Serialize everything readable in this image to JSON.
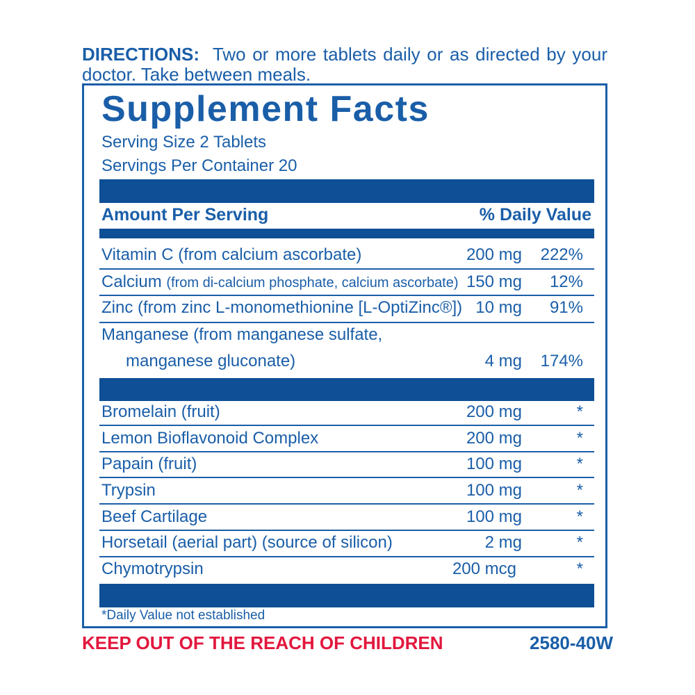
{
  "directions": {
    "label": "DIRECTIONS:",
    "text": "Two or more tablets daily or as directed by your doctor. Take between meals."
  },
  "panel": {
    "title": "Supplement Facts",
    "serving_size": "Serving Size 2 Tablets",
    "servings_per_container": "Servings Per Container 20",
    "amount_header": "Amount Per Serving",
    "dv_header": "% Daily Value",
    "nutrients": [
      {
        "name": "Vitamin C (from calcium ascorbate)",
        "amount": "200 mg",
        "dv": "222%"
      },
      {
        "name": "Calcium",
        "detail": "(from di-calcium phosphate, calcium ascorbate)",
        "amount": "150 mg",
        "dv": "12%"
      },
      {
        "name": "Zinc (from zinc L-monomethionine [L-OptiZinc®])",
        "amount": "10 mg",
        "dv": "91%"
      },
      {
        "name": "Manganese (from manganese sulfate,",
        "name_line2": "manganese gluconate)",
        "amount": "4 mg",
        "dv": "174%"
      }
    ],
    "other_ingredients": [
      {
        "name": "Bromelain (fruit)",
        "amount": "200 mg",
        "dv": "*"
      },
      {
        "name": "Lemon Bioflavonoid Complex",
        "amount": "200 mg",
        "dv": "*"
      },
      {
        "name": "Papain (fruit)",
        "amount": "100 mg",
        "dv": "*"
      },
      {
        "name": "Trypsin",
        "amount": "100 mg",
        "dv": "*"
      },
      {
        "name": "Beef Cartilage",
        "amount": "100 mg",
        "dv": "*"
      },
      {
        "name": "Horsetail (aerial part) (source of silicon)",
        "amount": "2 mg",
        "dv": "*"
      },
      {
        "name": "Chymotrypsin",
        "amount": "200 mcg",
        "dv": "*"
      }
    ],
    "footnote": "*Daily Value not established"
  },
  "warning": "KEEP OUT OF THE REACH OF CHILDREN",
  "product_code": "2580-40W",
  "colors": {
    "text_blue": "#1a5ea8",
    "bar_blue": "#0e4f95",
    "warning_red": "#e2173d"
  }
}
